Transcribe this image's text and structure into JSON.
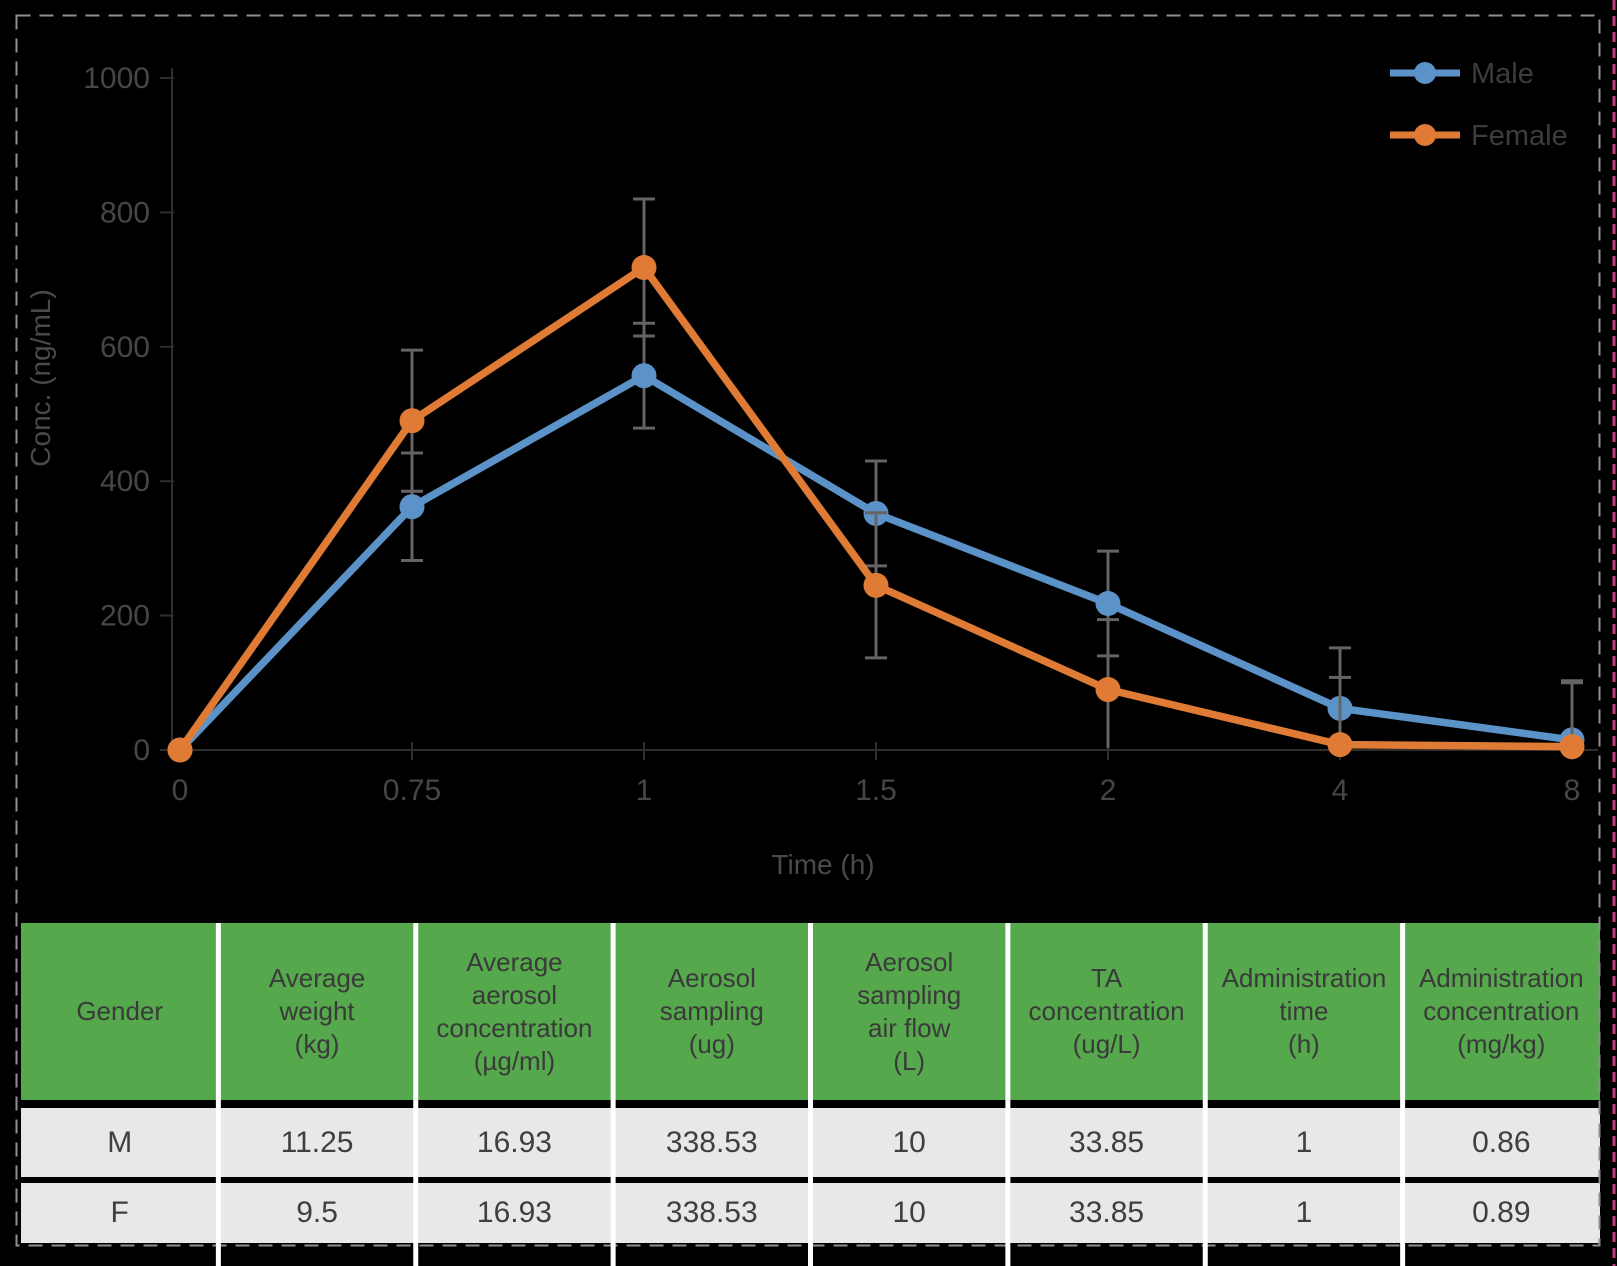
{
  "figure": {
    "background": "#000000",
    "dashed_border_color": "#8f8f8f",
    "edge_marker_color": "#c23d80",
    "separator_color": "#ffffff"
  },
  "chart_data": {
    "type": "line",
    "title": "",
    "xlabel": "Time (h)",
    "ylabel": "Conc. (ng/mL)",
    "categories": [
      "0",
      "0.75",
      "1",
      "1.5",
      "2",
      "4",
      "8"
    ],
    "y_ticks": [
      0,
      200,
      400,
      600,
      800,
      1000
    ],
    "ylim": [
      0,
      1000
    ],
    "grid": false,
    "legend_position": "top-right",
    "axis_color": "#2e2e2e",
    "tick_label_color": "#464646",
    "error_bar_color": "#646464",
    "series": [
      {
        "name": "Male",
        "color": "#5b93c8",
        "values": [
          0,
          362,
          557,
          352,
          218,
          62,
          15
        ],
        "errors": [
          0,
          80,
          78,
          78,
          78,
          90,
          88
        ]
      },
      {
        "name": "Female",
        "color": "#e07b35",
        "values": [
          0,
          490,
          718,
          245,
          90,
          8,
          5
        ],
        "errors": [
          0,
          105,
          102,
          108,
          104,
          100,
          95
        ]
      }
    ]
  },
  "table": {
    "header_bg": "#55a84b",
    "header_text_color": "#3a3a3a",
    "row_bg": "#e8e8e8",
    "row_text_color": "#3f3f3f",
    "columns": [
      {
        "lines": [
          "Gender"
        ]
      },
      {
        "lines": [
          "Average",
          "weight",
          "(kg)"
        ]
      },
      {
        "lines": [
          "Average",
          "aerosol",
          "concentration",
          "(µg/ml)"
        ]
      },
      {
        "lines": [
          "Aerosol",
          "sampling",
          "(ug)"
        ]
      },
      {
        "lines": [
          "Aerosol",
          "sampling",
          "air flow",
          "(L)"
        ]
      },
      {
        "lines": [
          "TA",
          "concentration",
          "(ug/L)"
        ]
      },
      {
        "lines": [
          "Administration",
          "time",
          "(h)"
        ]
      },
      {
        "lines": [
          "Administration",
          "concentration",
          "(mg/kg)"
        ]
      }
    ],
    "rows": [
      [
        "M",
        "11.25",
        "16.93",
        "338.53",
        "10",
        "33.85",
        "1",
        "0.86"
      ],
      [
        "F",
        "9.5",
        "16.93",
        "338.53",
        "10",
        "33.85",
        "1",
        "0.89"
      ]
    ]
  }
}
